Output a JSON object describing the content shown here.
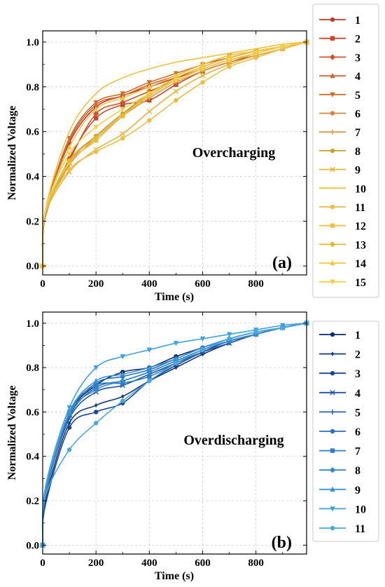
{
  "chart_data": [
    {
      "type": "line",
      "panel_label": "(a)",
      "annotation": "Overcharging",
      "xlabel": "Time (s)",
      "ylabel": "Normalized Voltage",
      "xlim": [
        0,
        990
      ],
      "ylim": [
        -0.04,
        1.05
      ],
      "xticks": [
        "0",
        "200",
        "400",
        "600",
        "800"
      ],
      "yticks": [
        "0.0",
        "0.2",
        "0.4",
        "0.6",
        "0.8",
        "1.0"
      ],
      "grid": true,
      "legend_position": "right-outside",
      "x": [
        0,
        10,
        100,
        200,
        300,
        400,
        500,
        600,
        700,
        800,
        900,
        990
      ],
      "series": [
        {
          "name": "1",
          "color": "#c0392b",
          "marker": "circle",
          "values": [
            0.0,
            0.24,
            0.55,
            0.71,
            0.76,
            0.8,
            0.84,
            0.88,
            0.92,
            0.95,
            0.98,
            1.0
          ]
        },
        {
          "name": "2",
          "color": "#c9462c",
          "marker": "square",
          "values": [
            0.0,
            0.22,
            0.48,
            0.66,
            0.72,
            0.74,
            0.81,
            0.87,
            0.91,
            0.94,
            0.97,
            1.0
          ]
        },
        {
          "name": "3",
          "color": "#cc5530",
          "marker": "diamond",
          "values": [
            0.0,
            0.23,
            0.47,
            0.68,
            0.73,
            0.78,
            0.83,
            0.88,
            0.92,
            0.95,
            0.98,
            1.0
          ]
        },
        {
          "name": "4",
          "color": "#d06236",
          "marker": "triangle-up",
          "values": [
            0.0,
            0.23,
            0.56,
            0.72,
            0.76,
            0.81,
            0.85,
            0.9,
            0.93,
            0.96,
            0.98,
            1.0
          ]
        },
        {
          "name": "5",
          "color": "#c8702c",
          "marker": "triangle-down",
          "values": [
            0.0,
            0.24,
            0.57,
            0.73,
            0.77,
            0.82,
            0.86,
            0.9,
            0.94,
            0.96,
            0.98,
            1.0
          ]
        },
        {
          "name": "6",
          "color": "#cd8a3c",
          "marker": "circle",
          "values": [
            0.0,
            0.23,
            0.46,
            0.58,
            0.68,
            0.76,
            0.83,
            0.88,
            0.92,
            0.95,
            0.98,
            1.0
          ]
        },
        {
          "name": "7",
          "color": "#d6994a",
          "marker": "plus",
          "values": [
            0.0,
            0.23,
            0.45,
            0.57,
            0.67,
            0.75,
            0.82,
            0.87,
            0.91,
            0.95,
            0.98,
            1.0
          ]
        },
        {
          "name": "8",
          "color": "#c9a132",
          "marker": "circle",
          "values": [
            0.0,
            0.24,
            0.47,
            0.58,
            0.68,
            0.77,
            0.83,
            0.88,
            0.92,
            0.95,
            0.98,
            1.0
          ]
        },
        {
          "name": "9",
          "color": "#e0b53a",
          "marker": "x",
          "values": [
            0.0,
            0.23,
            0.42,
            0.52,
            0.59,
            0.69,
            0.78,
            0.85,
            0.9,
            0.94,
            0.97,
            1.0
          ]
        },
        {
          "name": "10",
          "color": "#e8c43c",
          "marker": "none",
          "values": [
            0.0,
            0.25,
            0.6,
            0.77,
            0.84,
            0.88,
            0.91,
            0.93,
            0.95,
            0.97,
            0.99,
            1.0
          ]
        },
        {
          "name": "11",
          "color": "#ecbd45",
          "marker": "circle",
          "values": [
            0.0,
            0.24,
            0.43,
            0.51,
            0.57,
            0.65,
            0.74,
            0.82,
            0.89,
            0.93,
            0.97,
            1.0
          ]
        },
        {
          "name": "12",
          "color": "#f0c040",
          "marker": "square",
          "values": [
            0.0,
            0.24,
            0.46,
            0.56,
            0.67,
            0.76,
            0.83,
            0.88,
            0.92,
            0.95,
            0.98,
            1.0
          ]
        },
        {
          "name": "13",
          "color": "#e6b830",
          "marker": "diamond",
          "values": [
            0.0,
            0.24,
            0.47,
            0.57,
            0.67,
            0.77,
            0.84,
            0.89,
            0.93,
            0.96,
            0.98,
            1.0
          ]
        },
        {
          "name": "14",
          "color": "#efc640",
          "marker": "triangle-up",
          "values": [
            0.0,
            0.24,
            0.53,
            0.7,
            0.75,
            0.8,
            0.85,
            0.9,
            0.94,
            0.96,
            0.98,
            1.0
          ]
        },
        {
          "name": "15",
          "color": "#f2cf4a",
          "marker": "triangle-down",
          "values": [
            0.0,
            0.25,
            0.5,
            0.62,
            0.7,
            0.77,
            0.83,
            0.88,
            0.92,
            0.95,
            0.98,
            1.0
          ]
        }
      ]
    },
    {
      "type": "line",
      "panel_label": "(b)",
      "annotation": "Overdischarging",
      "xlabel": "Time (s)",
      "ylabel": "Normalized Voltage",
      "xlim": [
        0,
        990
      ],
      "ylim": [
        -0.04,
        1.05
      ],
      "xticks": [
        "0",
        "200",
        "400",
        "600",
        "800"
      ],
      "yticks": [
        "0.0",
        "0.2",
        "0.4",
        "0.6",
        "0.8",
        "1.0"
      ],
      "grid": true,
      "legend_position": "right-outside",
      "x": [
        0,
        10,
        100,
        200,
        300,
        400,
        500,
        600,
        700,
        800,
        900,
        990
      ],
      "series": [
        {
          "name": "1",
          "color": "#0d2a6b",
          "marker": "circle",
          "values": [
            0.0,
            0.22,
            0.59,
            0.72,
            0.78,
            0.8,
            0.85,
            0.89,
            0.93,
            0.96,
            0.98,
            1.0
          ]
        },
        {
          "name": "2",
          "color": "#14387e",
          "marker": "diamond-small",
          "values": [
            0.0,
            0.2,
            0.55,
            0.63,
            0.67,
            0.74,
            0.8,
            0.86,
            0.91,
            0.95,
            0.98,
            1.0
          ]
        },
        {
          "name": "3",
          "color": "#1a4790",
          "marker": "circle",
          "values": [
            0.0,
            0.18,
            0.53,
            0.6,
            0.64,
            0.74,
            0.81,
            0.87,
            0.92,
            0.95,
            0.98,
            1.0
          ]
        },
        {
          "name": "4",
          "color": "#1e55a2",
          "marker": "x",
          "values": [
            0.0,
            0.23,
            0.57,
            0.69,
            0.72,
            0.77,
            0.82,
            0.87,
            0.91,
            0.95,
            0.98,
            1.0
          ]
        },
        {
          "name": "5",
          "color": "#2563b0",
          "marker": "plus",
          "values": [
            0.0,
            0.24,
            0.58,
            0.71,
            0.74,
            0.78,
            0.83,
            0.88,
            0.92,
            0.95,
            0.98,
            1.0
          ]
        },
        {
          "name": "6",
          "color": "#2a6fba",
          "marker": "circle",
          "values": [
            0.0,
            0.22,
            0.59,
            0.73,
            0.76,
            0.79,
            0.84,
            0.89,
            0.93,
            0.96,
            0.98,
            1.0
          ]
        },
        {
          "name": "7",
          "color": "#2f7cc4",
          "marker": "square",
          "values": [
            0.0,
            0.23,
            0.6,
            0.72,
            0.73,
            0.76,
            0.82,
            0.88,
            0.92,
            0.95,
            0.98,
            1.0
          ]
        },
        {
          "name": "8",
          "color": "#3488cc",
          "marker": "diamond",
          "values": [
            0.0,
            0.23,
            0.59,
            0.7,
            0.74,
            0.78,
            0.83,
            0.88,
            0.92,
            0.95,
            0.98,
            1.0
          ]
        },
        {
          "name": "9",
          "color": "#3a93d3",
          "marker": "triangle-up",
          "values": [
            0.0,
            0.24,
            0.6,
            0.74,
            0.77,
            0.8,
            0.84,
            0.89,
            0.93,
            0.96,
            0.98,
            1.0
          ]
        },
        {
          "name": "10",
          "color": "#41a0da",
          "marker": "triangle-down",
          "values": [
            0.0,
            0.26,
            0.62,
            0.8,
            0.85,
            0.88,
            0.91,
            0.93,
            0.95,
            0.97,
            0.99,
            1.0
          ]
        },
        {
          "name": "11",
          "color": "#4aa8dc",
          "marker": "circle",
          "values": [
            0.0,
            0.22,
            0.43,
            0.55,
            0.65,
            0.74,
            0.82,
            0.88,
            0.93,
            0.96,
            0.98,
            1.0
          ]
        }
      ]
    }
  ]
}
